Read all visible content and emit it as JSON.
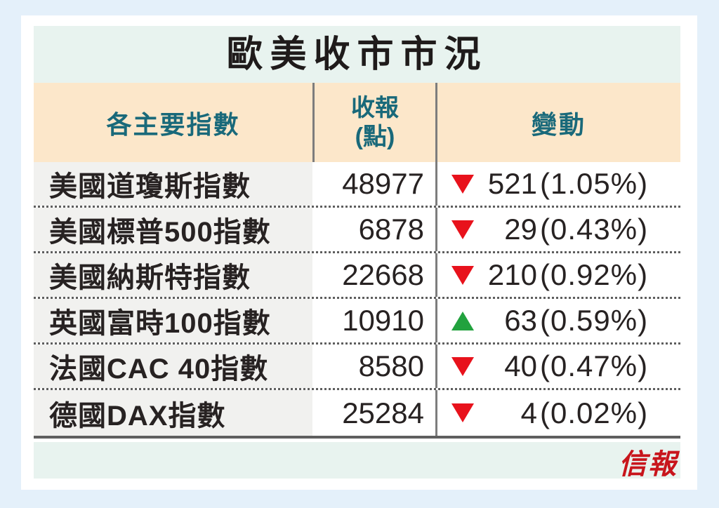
{
  "table": {
    "title": "歐美收市市況",
    "header": {
      "indices": "各主要指數",
      "close_line1": "收報",
      "close_line2": "(點)",
      "change": "變動"
    }
  },
  "chart_data": {
    "type": "table",
    "title": "歐美收市市況",
    "columns": [
      "各主要指數",
      "收報(點)",
      "變動"
    ],
    "rows": [
      {
        "name": "美國道瓊斯指數",
        "close": 48977,
        "direction": "down",
        "change": 521,
        "change_pct": "1.05%"
      },
      {
        "name": "美國標普500指數",
        "close": 6878,
        "direction": "down",
        "change": 29,
        "change_pct": "0.43%"
      },
      {
        "name": "美國納斯特指數",
        "close": 22668,
        "direction": "down",
        "change": 210,
        "change_pct": "0.92%"
      },
      {
        "name": "英國富時100指數",
        "close": 10910,
        "direction": "up",
        "change": 63,
        "change_pct": "0.59%"
      },
      {
        "name": "法國CAC 40指數",
        "close": 8580,
        "direction": "down",
        "change": 40,
        "change_pct": "0.47%"
      },
      {
        "name": "德國DAX指數",
        "close": 25284,
        "direction": "down",
        "change": 4,
        "change_pct": "0.02%"
      }
    ]
  },
  "rows_display": [
    {
      "name": "美國道瓊斯指數",
      "close": "48977",
      "direction": "down",
      "change": "521",
      "pct": "(1.05%)"
    },
    {
      "name": "美國標普500指數",
      "close": "6878",
      "direction": "down",
      "change": "29",
      "pct": "(0.43%)"
    },
    {
      "name": "美國納斯特指數",
      "close": "22668",
      "direction": "down",
      "change": "210",
      "pct": "(0.92%)"
    },
    {
      "name": "英國富時100指數",
      "close": "10910",
      "direction": "up",
      "change": "63",
      "pct": "(0.59%)"
    },
    {
      "name": "法國CAC 40指數",
      "close": "8580",
      "direction": "down",
      "change": "40",
      "pct": "(0.47%)"
    },
    {
      "name": "德國DAX指數",
      "close": "25284",
      "direction": "down",
      "change": "4",
      "pct": "(0.02%)"
    }
  ],
  "footer": {
    "logo": "信報"
  },
  "colors": {
    "background": "#e4f0fa",
    "card": "#ffffff",
    "panel_mint": "#e8f3ef",
    "header_peach": "#fce7ca",
    "header_text_teal": "#19697a",
    "name_cell_gray": "#f1f1ef",
    "down_red": "#e8121c",
    "up_green": "#22a23e",
    "logo_red": "#c8151c",
    "body_text": "#272222"
  }
}
